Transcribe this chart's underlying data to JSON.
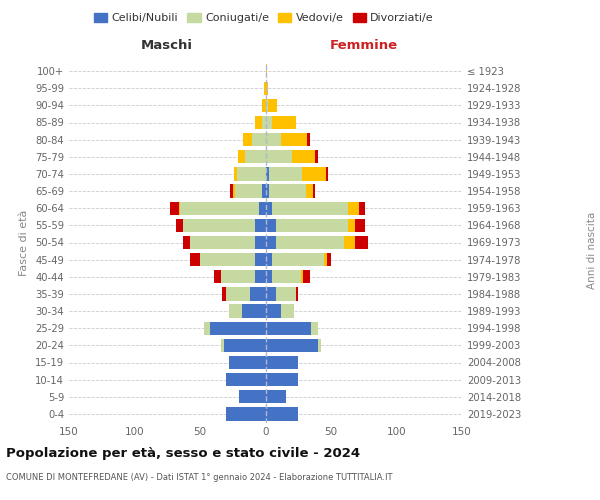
{
  "age_groups": [
    "0-4",
    "5-9",
    "10-14",
    "15-19",
    "20-24",
    "25-29",
    "30-34",
    "35-39",
    "40-44",
    "45-49",
    "50-54",
    "55-59",
    "60-64",
    "65-69",
    "70-74",
    "75-79",
    "80-84",
    "85-89",
    "90-94",
    "95-99",
    "100+"
  ],
  "birth_years": [
    "2019-2023",
    "2014-2018",
    "2009-2013",
    "2004-2008",
    "1999-2003",
    "1994-1998",
    "1989-1993",
    "1984-1988",
    "1979-1983",
    "1974-1978",
    "1969-1973",
    "1964-1968",
    "1959-1963",
    "1954-1958",
    "1949-1953",
    "1944-1948",
    "1939-1943",
    "1934-1938",
    "1929-1933",
    "1924-1928",
    "≤ 1923"
  ],
  "colors": {
    "celibi": "#4472c4",
    "coniugati": "#c5d9a0",
    "vedovi": "#ffc000",
    "divorziati": "#cc0000"
  },
  "maschi": {
    "celibi": [
      30,
      20,
      30,
      28,
      32,
      42,
      18,
      12,
      8,
      8,
      8,
      8,
      5,
      3,
      0,
      0,
      0,
      0,
      0,
      0,
      0
    ],
    "coniugati": [
      0,
      0,
      0,
      0,
      2,
      5,
      10,
      18,
      26,
      42,
      50,
      55,
      60,
      20,
      22,
      16,
      10,
      3,
      0,
      0,
      0
    ],
    "vedovi": [
      0,
      0,
      0,
      0,
      0,
      0,
      0,
      0,
      0,
      0,
      0,
      0,
      1,
      2,
      2,
      5,
      7,
      5,
      3,
      1,
      0
    ],
    "divorziati": [
      0,
      0,
      0,
      0,
      0,
      0,
      0,
      3,
      5,
      8,
      5,
      5,
      7,
      2,
      0,
      0,
      0,
      0,
      0,
      0,
      0
    ]
  },
  "femmine": {
    "nubili": [
      25,
      16,
      25,
      25,
      40,
      35,
      12,
      8,
      5,
      5,
      8,
      8,
      5,
      3,
      3,
      0,
      0,
      0,
      0,
      0,
      0
    ],
    "coniugate": [
      0,
      0,
      0,
      0,
      2,
      5,
      10,
      15,
      22,
      40,
      52,
      55,
      58,
      28,
      25,
      20,
      12,
      5,
      2,
      0,
      0
    ],
    "vedove": [
      0,
      0,
      0,
      0,
      0,
      0,
      0,
      0,
      2,
      2,
      8,
      5,
      8,
      5,
      18,
      18,
      20,
      18,
      7,
      2,
      1
    ],
    "divorziate": [
      0,
      0,
      0,
      0,
      0,
      0,
      0,
      2,
      5,
      3,
      10,
      8,
      5,
      2,
      2,
      2,
      2,
      0,
      0,
      0,
      0
    ]
  },
  "xlim": 150,
  "title": "Popolazione per età, sesso e stato civile - 2024",
  "subtitle": "COMUNE DI MONTEFREDANE (AV) - Dati ISTAT 1° gennaio 2024 - Elaborazione TUTTITALIA.IT",
  "ylabel_left": "Fasce di età",
  "ylabel_right": "Anni di nascita",
  "xlabel_maschi": "Maschi",
  "xlabel_femmine": "Femmine",
  "bg_color": "#ffffff",
  "grid_color": "#cccccc",
  "legend_labels": [
    "Celibi/Nubili",
    "Coniugati/e",
    "Vedovi/e",
    "Divorziati/e"
  ]
}
